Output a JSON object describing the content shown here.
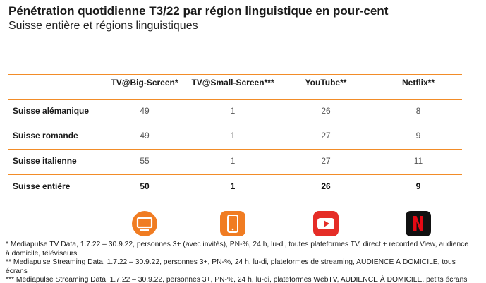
{
  "header": {
    "title": "Pénétration quotidienne T3/22 par région linguistique en pour-cent",
    "subtitle": "Suisse entière et régions linguistiques"
  },
  "table": {
    "columns": [
      "TV@Big-Screen*",
      "TV@Small-Screen***",
      "YouTube**",
      "Netflix**"
    ],
    "rows": [
      [
        "Suisse alémanique",
        49,
        1,
        26,
        8
      ],
      [
        "Suisse romande",
        49,
        1,
        27,
        9
      ],
      [
        "Suisse italienne",
        55,
        1,
        27,
        11
      ],
      [
        "Suisse entière",
        50,
        1,
        26,
        9
      ]
    ]
  },
  "footnotes": [
    "* Mediapulse TV Data, 1.7.22 – 30.9.22, personnes 3+ (avec invités), PN-%, 24 h, lu-di, toutes plateformes TV, direct + recorded View, audience à domicile, téléviseurs",
    "** Mediapulse Streaming Data, 1.7.22 – 30.9.22, personnes 3+, PN-%, 24 h, lu-di, plateformes de streaming, AUDIENCE À DOMICILE, tous écrans",
    "*** Mediapulse Streaming Data, 1.7.22 – 30.9.22, personnes 3+, PN-%, 24 h, lu-di, plateformes WebTV, AUDIENCE À DOMICILE, petits écrans"
  ]
}
